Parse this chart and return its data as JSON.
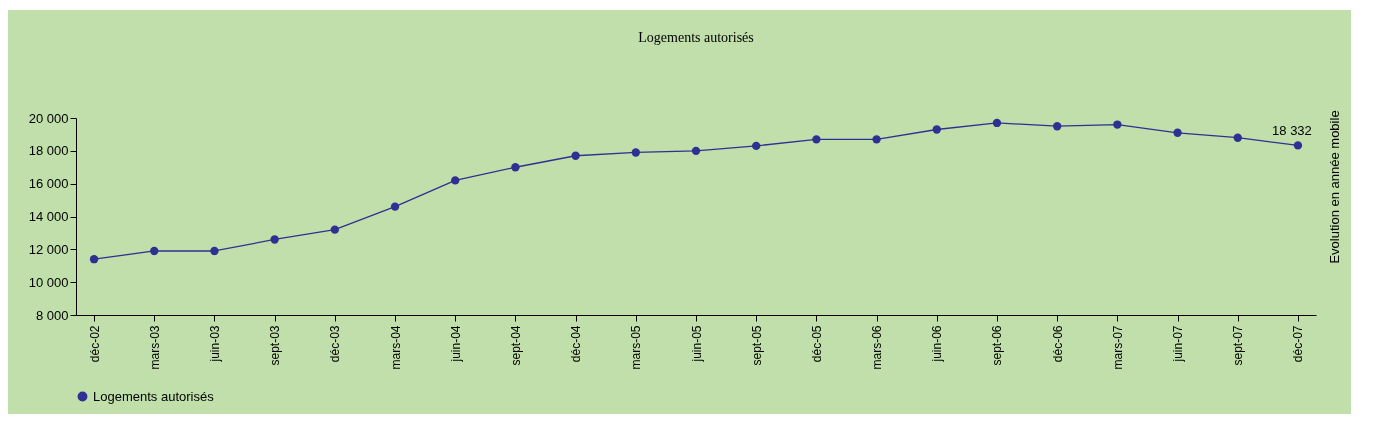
{
  "chart_data": {
    "type": "line",
    "title": "Logements autorisés",
    "ylabel": "Evolution en année mobile",
    "categories": [
      "déc-02",
      "mars-03",
      "juin-03",
      "sept-03",
      "déc-03",
      "mars-04",
      "juin-04",
      "sept-04",
      "déc-04",
      "mars-05",
      "juin-05",
      "sept-05",
      "déc-05",
      "mars-06",
      "juin-06",
      "sept-06",
      "déc-06",
      "mars-07",
      "juin-07",
      "sept-07",
      "déc-07"
    ],
    "series": [
      {
        "name": "Logements autorisés",
        "color": "#2e3192",
        "values": [
          11400,
          11900,
          11900,
          12600,
          13200,
          14600,
          16200,
          17000,
          17700,
          17900,
          18000,
          18300,
          18700,
          18700,
          19300,
          19700,
          19500,
          19600,
          19100,
          18800,
          18332
        ],
        "value_labels": [
          null,
          null,
          null,
          null,
          null,
          null,
          null,
          null,
          null,
          null,
          null,
          null,
          null,
          null,
          null,
          null,
          null,
          null,
          null,
          null,
          "18 332"
        ]
      }
    ],
    "ylim": [
      8000,
      20000
    ],
    "yticks": [
      8000,
      10000,
      12000,
      14000,
      16000,
      18000,
      20000
    ],
    "marker": "circle",
    "line_style": "solid",
    "legend": "bottom",
    "grid": false
  }
}
